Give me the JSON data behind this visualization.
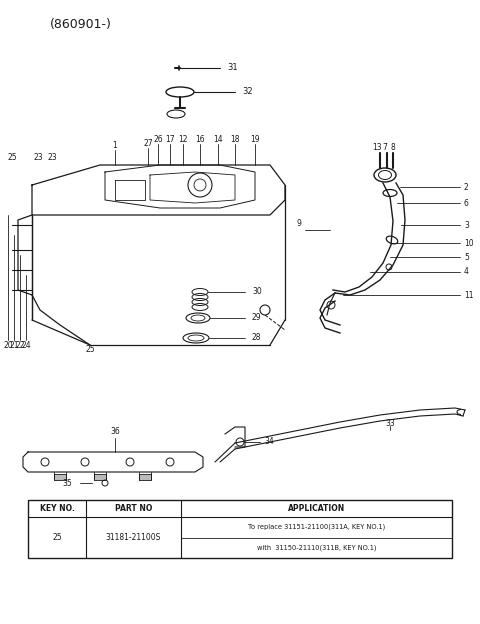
{
  "title": "(860901-)",
  "bg_color": "#ffffff",
  "line_color": "#1a1a1a",
  "part_numbers": {
    "key_no": "25",
    "part_no": "31181-21100S",
    "application_line1": "To replace 31151-21100(311A, KEY NO.1)",
    "application_line2": "with  31150-21110(311B, KEY NO.1)"
  },
  "table_header": [
    "KEY NO.",
    "PART NO",
    "APPLICATION"
  ]
}
